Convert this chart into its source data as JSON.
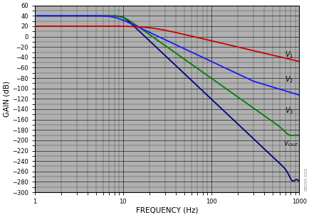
{
  "title": "",
  "xlabel": "FREQUENCY (Hz)",
  "ylabel": "GAIN (dB)",
  "xlim": [
    1,
    1000
  ],
  "ylim": [
    -300,
    60
  ],
  "yticks": [
    60,
    40,
    20,
    0,
    -20,
    -40,
    -60,
    -80,
    -100,
    -120,
    -140,
    -160,
    -180,
    -200,
    -220,
    -240,
    -260,
    -280,
    -300
  ],
  "bg_color": "#b0b0b0",
  "grid_color": "#000000",
  "line_colors": {
    "V1": "#cc0000",
    "V2": "#1a1aff",
    "V3": "#008000",
    "VOUT": "#000080"
  },
  "watermark": "08555-002",
  "V1_dc": 20,
  "V2_dc": 40,
  "V3_dc": 40,
  "VOUT_dc": 40,
  "fc": 10.0
}
